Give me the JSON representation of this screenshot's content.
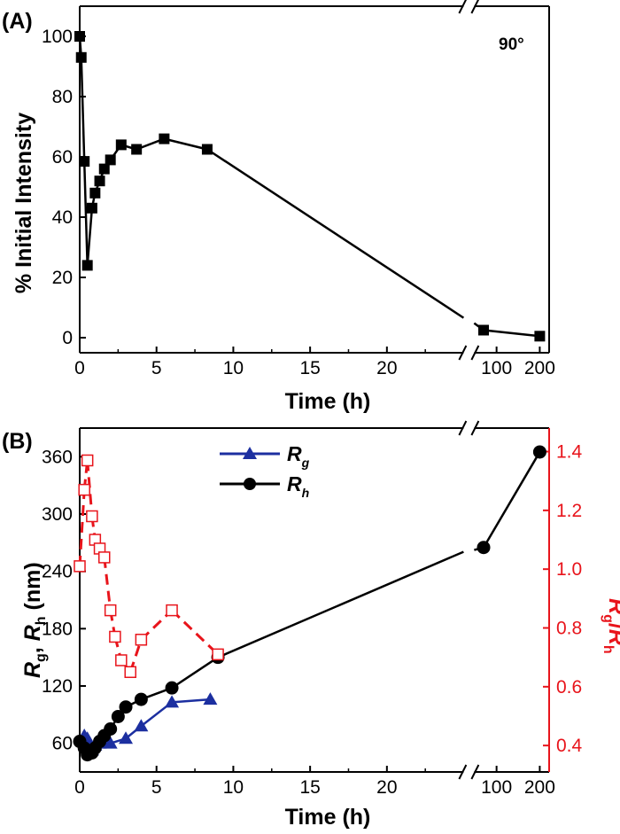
{
  "chart_data": [
    {
      "panel": "(A)",
      "type": "line",
      "xlabel": "Time (h)",
      "ylabel": "% Initial Intensity",
      "annotation": "90°",
      "x_ticks": [
        "0",
        "5",
        "10",
        "15",
        "20",
        "100",
        "200"
      ],
      "y_ticks": [
        "0",
        "20",
        "40",
        "60",
        "80",
        "100"
      ],
      "ylim": [
        -5,
        110
      ],
      "x_break": true,
      "series": [
        {
          "color": "#000000",
          "marker": "square",
          "x": [
            0,
            0.1,
            0.3,
            0.5,
            0.8,
            1.0,
            1.3,
            1.6,
            2.0,
            2.7,
            3.7,
            5.5,
            8.3,
            70,
            200
          ],
          "y": [
            100,
            93,
            58.5,
            24,
            43,
            48,
            52,
            56,
            59,
            64,
            62.5,
            66,
            62.5,
            2.5,
            0.5
          ]
        }
      ]
    },
    {
      "panel": "(B)",
      "type": "line",
      "xlabel": "Time (h)",
      "ylabel_parts": [
        "R",
        "g",
        ", ",
        "R",
        "h",
        " (nm)"
      ],
      "y2label_parts": [
        "R",
        "g",
        "/",
        "R",
        "h"
      ],
      "x_ticks": [
        "0",
        "5",
        "10",
        "15",
        "20",
        "100",
        "200"
      ],
      "y_ticks": [
        "60",
        "120",
        "180",
        "240",
        "300",
        "360"
      ],
      "y2_ticks": [
        "0.4",
        "0.6",
        "0.8",
        "1.0",
        "1.2",
        "1.4"
      ],
      "ylim": [
        30,
        390
      ],
      "y2lim": [
        0.31,
        1.48
      ],
      "x_break": true,
      "legend": [
        {
          "main": "R",
          "sub": "g"
        },
        {
          "main": "R",
          "sub": "h"
        }
      ],
      "series": [
        {
          "name": "Rg",
          "color": "#1c2fa0",
          "marker": "triangle",
          "axis": "left",
          "x": [
            0.3,
            0.5,
            0.8,
            1.0,
            1.3,
            1.6,
            2.0,
            3.0,
            4.0,
            6.0,
            8.5
          ],
          "y": [
            68,
            65,
            53,
            58,
            60,
            62,
            60,
            65,
            78,
            103,
            106
          ]
        },
        {
          "name": "Rh",
          "color": "#000000",
          "marker": "circle",
          "axis": "left",
          "x": [
            0,
            0.3,
            0.5,
            0.8,
            1.0,
            1.3,
            1.6,
            2.0,
            2.5,
            3.0,
            4.0,
            6.0,
            9.0,
            70,
            200
          ],
          "y": [
            62,
            55,
            48,
            50,
            55,
            62,
            68,
            75,
            88,
            98,
            106,
            118,
            150,
            265,
            365
          ],
          "gap_after_index": 12
        },
        {
          "name": "Rg/Rh",
          "color": "#e8141b",
          "marker": "open-square",
          "dashed": true,
          "axis": "right",
          "x": [
            0,
            0.3,
            0.5,
            0.8,
            1.0,
            1.3,
            1.6,
            2.0,
            2.3,
            2.7,
            3.3,
            4.0,
            6.0,
            9.0
          ],
          "y": [
            1.01,
            1.27,
            1.37,
            1.18,
            1.1,
            1.07,
            1.04,
            0.86,
            0.77,
            0.69,
            0.65,
            0.76,
            0.86,
            0.71
          ]
        }
      ]
    }
  ]
}
